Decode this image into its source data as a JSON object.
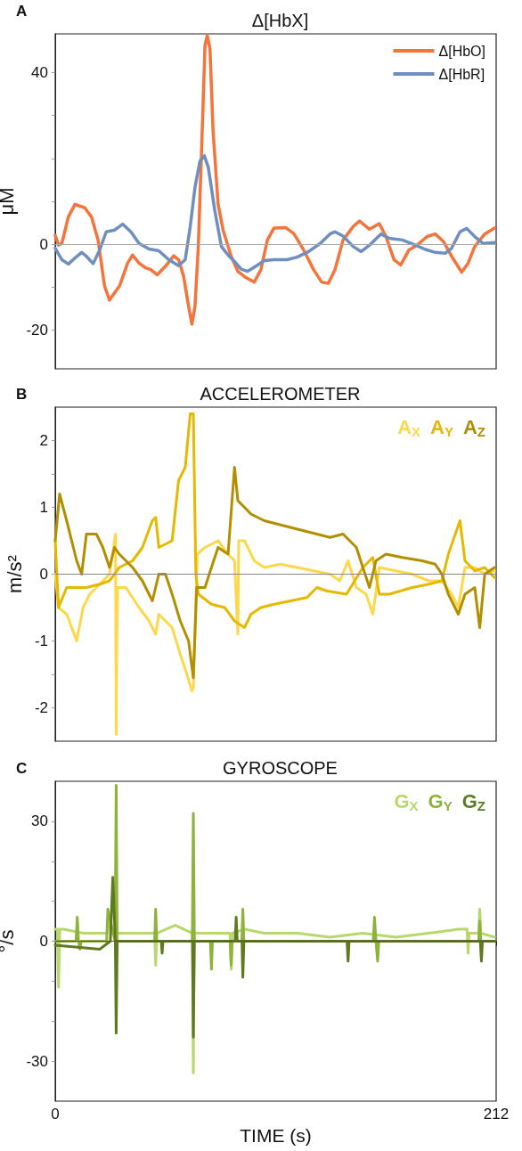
{
  "chart_data": [
    {
      "type": "line",
      "title": "Δ[HbX]",
      "ylabel": "μM",
      "annotations": [
        "A"
      ],
      "xlim": [
        0,
        212
      ],
      "ylim": [
        -29,
        49
      ],
      "yticks": [
        -20,
        {
          "value": -10,
          "label": null
        },
        0,
        {
          "value": 10,
          "label": null
        },
        {
          "value": 20,
          "label": null
        },
        {
          "value": 30,
          "label": null
        },
        40
      ],
      "tick_labels": "y",
      "grid": false,
      "legend": "top right",
      "marker": "none",
      "line_style": "solid",
      "ref_lines": [
        {
          "axis": "y",
          "value": 0,
          "color": "#aaaaaa"
        }
      ],
      "series": [
        {
          "name": "Δ[HbO]",
          "color": "#f4743b",
          "x": [
            0,
            1.6,
            3.2,
            6.3,
            9.5,
            14.2,
            17.4,
            20.6,
            23.7,
            26.1,
            28.5,
            30.9,
            34.8,
            37.2,
            40.3,
            43.5,
            45.9,
            49.0,
            53.0,
            57.0,
            59.3,
            61.7,
            64.1,
            65.7,
            67.2,
            68.8,
            70.4,
            72.0,
            73.1,
            74.4,
            75.9,
            78.3,
            80.7,
            84.6,
            87.8,
            91.8,
            95.7,
            98.9,
            102.0,
            105.2,
            110.7,
            114.7,
            119.4,
            124.2,
            128.1,
            131.3,
            134.5,
            138.4,
            143.2,
            146.3,
            151.1,
            155.8,
            159.0,
            162.9,
            166.1,
            170.1,
            174.0,
            178.8,
            182.7,
            186.7,
            190.6,
            195.4,
            198.5,
            201.7,
            206.5,
            211.2
          ],
          "values": [
            2.1,
            -0.2,
            0.2,
            6.4,
            9.3,
            8.5,
            6.4,
            1.0,
            -9.7,
            -13,
            -11.3,
            -9.7,
            -4.4,
            -2.5,
            -4.4,
            -5.5,
            -5.9,
            -7.1,
            -5.1,
            -2.7,
            -3.6,
            -7.4,
            -14.4,
            -18.6,
            -14.4,
            -0.5,
            22.5,
            46.3,
            48.6,
            45.5,
            26.3,
            9.4,
            3.3,
            -2.8,
            -6.3,
            -7.8,
            -8.8,
            -5.9,
            1.0,
            3.8,
            3.9,
            2.5,
            -1.3,
            -5.9,
            -8.8,
            -9.1,
            -5.9,
            1.0,
            4.1,
            5.4,
            3.5,
            4.8,
            1.8,
            -3.6,
            -4.8,
            -1.3,
            -0.2,
            1.8,
            2.4,
            0.6,
            -2.8,
            -6.5,
            -4.4,
            -0.5,
            2.4,
            3.8
          ]
        },
        {
          "name": "Δ[HbR]",
          "color": "#6f8fbf",
          "x": [
            0,
            3.2,
            6.3,
            9.5,
            12.7,
            15.0,
            18.2,
            21.4,
            24.5,
            28.5,
            32.4,
            36.4,
            40.3,
            45.1,
            49.8,
            54.6,
            59.3,
            62.5,
            64.9,
            67.2,
            69.6,
            71.7,
            73.6,
            76.7,
            79.9,
            83.1,
            86.2,
            89.4,
            92.5,
            96.5,
            100.5,
            105.2,
            111.5,
            116.3,
            121.8,
            127.4,
            132.1,
            134.5,
            138.4,
            143.2,
            147.1,
            151.1,
            156.6,
            160.6,
            166.9,
            173.2,
            178.0,
            182.7,
            187.5,
            190.6,
            194.6,
            197.8,
            201.7,
            205.7,
            211.2
          ],
          "values": [
            -0.9,
            -3.6,
            -4.6,
            -3.2,
            -1.9,
            -2.8,
            -4.5,
            -1.3,
            2.9,
            3.3,
            4.7,
            2.9,
            0.2,
            -1.1,
            -1.5,
            -3.6,
            -5.0,
            -3.6,
            4.1,
            13.3,
            19.4,
            20.6,
            17.9,
            7.9,
            -0.5,
            -2.5,
            -4.0,
            -5.8,
            -6.3,
            -5.1,
            -3.8,
            -3.6,
            -3.6,
            -3.0,
            -1.7,
            0.2,
            2.4,
            2.9,
            1.9,
            -0.5,
            -1.7,
            -0.2,
            2.4,
            1.4,
            1.0,
            -0.2,
            -1.2,
            -1.9,
            -2.1,
            -0.9,
            2.9,
            3.7,
            1.8,
            0.2,
            0.4
          ]
        }
      ]
    },
    {
      "type": "line",
      "title": "ACCELEROMETER",
      "ylabel": "m/s²",
      "annotations": [
        "B"
      ],
      "xlim": [
        0,
        212
      ],
      "ylim": [
        -2.5,
        2.5
      ],
      "yticks": [
        -2,
        {
          "value": -1.5,
          "label": null
        },
        -1,
        0,
        1,
        {
          "value": 1.5,
          "label": null
        },
        2
      ],
      "tick_labels": "y",
      "grid": false,
      "legend": "top right",
      "marker": "none",
      "line_style": "solid",
      "ref_lines": [
        {
          "axis": "y",
          "value": 0,
          "color": "#888888"
        }
      ],
      "series": [
        {
          "name": "A$_{X}$",
          "color": "#fdd84a",
          "x": [
            0,
            1.6,
            5.5,
            10.3,
            13.4,
            16.6,
            21.4,
            26.1,
            29.0,
            29.3,
            29.6,
            30.0,
            34.0,
            40.3,
            45.1,
            48.3,
            49.8,
            56.2,
            60.1,
            63.3,
            65.7,
            66.4,
            68.3,
            72.0,
            78.3,
            83.1,
            86.2,
            87.8,
            88.2,
            91.0,
            95.7,
            100.5,
            108.4,
            116.3,
            124.2,
            132.1,
            136.8,
            140.8,
            144.8,
            149.5,
            152.7,
            155.8,
            163.7,
            171.6,
            179.6,
            185.9,
            190.6,
            193.8,
            197.0,
            201.7,
            206.5,
            211.2
          ],
          "values": [
            0,
            -0.5,
            -0.6,
            -1.0,
            -0.5,
            -0.3,
            -0.15,
            0,
            0.6,
            -2.4,
            -1.0,
            -0.2,
            -0.2,
            -0.5,
            -0.7,
            -0.9,
            -0.6,
            -0.8,
            -1.2,
            -1.5,
            -1.75,
            -1.7,
            0.3,
            0.4,
            0.5,
            0.3,
            0.2,
            -0.9,
            0.5,
            0.5,
            0.2,
            0.1,
            0.15,
            0.1,
            0.05,
            0,
            -0.1,
            0.2,
            -0.2,
            -0.3,
            -0.6,
            0.1,
            0.05,
            0,
            -0.1,
            -0.1,
            -0.3,
            -0.5,
            0.1,
            0.1,
            0,
            0.05
          ]
        },
        {
          "name": "A$_{Y}$",
          "color": "#e6b800",
          "x": [
            0,
            1.6,
            5.5,
            15.0,
            21.4,
            26.1,
            30.8,
            37.2,
            41.9,
            46.7,
            48.3,
            49.8,
            53.0,
            56.2,
            59.3,
            62.5,
            64.9,
            66.4,
            67.6,
            68.8,
            75.1,
            81.5,
            86.2,
            91.0,
            94.1,
            98.9,
            105.2,
            113.1,
            121.0,
            125.8,
            130.5,
            140.0,
            147.9,
            152.7,
            155.8,
            160.6,
            171.6,
            179.6,
            185.9,
            189.0,
            194.6,
            197.0,
            201.7,
            206.5,
            211.2
          ],
          "values": [
            0.5,
            -0.5,
            -0.2,
            -0.2,
            -0.15,
            -0.1,
            0.1,
            0.2,
            0.4,
            0.8,
            0.85,
            0.4,
            0.45,
            0.5,
            1.4,
            1.6,
            2.4,
            2.4,
            0,
            -0.3,
            -0.45,
            -0.5,
            -0.7,
            -0.8,
            -0.6,
            -0.5,
            -0.45,
            -0.4,
            -0.35,
            -0.2,
            -0.25,
            -0.3,
            0.1,
            0.25,
            -0.3,
            -0.3,
            -0.2,
            -0.15,
            -0.1,
            0.3,
            0.8,
            0.2,
            0.05,
            0.1,
            -0.05
          ]
        },
        {
          "name": "A$_{Z}$",
          "color": "#b38f00",
          "x": [
            0,
            2.1,
            5.5,
            10.3,
            12.7,
            15.0,
            19.8,
            22.9,
            26.1,
            28.5,
            30.8,
            34.0,
            37.2,
            41.9,
            46.7,
            49.8,
            53.0,
            56.2,
            60.1,
            64.1,
            66.4,
            68.0,
            72.0,
            75.1,
            78.3,
            83.1,
            86.2,
            87.8,
            91.0,
            94.1,
            100.5,
            106.8,
            113.1,
            119.4,
            125.8,
            132.1,
            138.4,
            144.8,
            147.9,
            151.1,
            154.2,
            159.0,
            166.9,
            176.4,
            182.7,
            185.9,
            189.0,
            193.8,
            197.0,
            201.7,
            204.1,
            206.5,
            211.2
          ],
          "values": [
            0.5,
            1.2,
            0.8,
            0.2,
            0.0,
            0.6,
            0.6,
            0.4,
            0.1,
            0.4,
            0.3,
            0.2,
            0.1,
            -0.1,
            -0.4,
            0,
            0,
            -0.3,
            -0.7,
            -1.0,
            -1.55,
            -0.2,
            -0.2,
            0.1,
            0.4,
            0.3,
            1.6,
            1.1,
            1.0,
            0.9,
            0.8,
            0.75,
            0.7,
            0.65,
            0.6,
            0.55,
            0.6,
            0.4,
            0.1,
            -0.2,
            0.2,
            0.3,
            0.25,
            0.2,
            0.15,
            0,
            -0.3,
            -0.6,
            -0.3,
            -0.2,
            -0.8,
            0.0,
            0.1
          ]
        }
      ]
    },
    {
      "type": "line",
      "title": "GYROSCOPE",
      "ylabel": "°/s",
      "xlabel": "TIME (s)",
      "annotations": [
        "C"
      ],
      "xlim": [
        0,
        212
      ],
      "ylim": [
        -40,
        40
      ],
      "xticks": [
        0,
        212
      ],
      "yticks": [
        -30,
        {
          "value": -20,
          "label": null
        },
        {
          "value": -10,
          "label": null
        },
        0,
        {
          "value": 10,
          "label": null
        },
        {
          "value": 20,
          "label": null
        },
        30
      ],
      "grid": false,
      "legend": "top right",
      "marker": "none",
      "line_style": "solid",
      "ref_lines": [
        {
          "axis": "y",
          "value": 0,
          "color": "#555555"
        }
      ],
      "series": [
        {
          "name": "G$_{X}$",
          "color": "#b8d86b",
          "x": [
            0,
            1.0,
            1.6,
            2.2,
            4.0,
            13.4,
            25.0,
            26.1,
            27.2,
            29.0,
            29.3,
            29.6,
            40.3,
            47.8,
            48.3,
            48.8,
            57.7,
            66.0,
            66.4,
            66.8,
            76.7,
            84.0,
            84.6,
            85.2,
            91.0,
            100.5,
            116.3,
            132.1,
            147.9,
            163.7,
            179.6,
            193.8,
            198.0,
            198.5,
            199.0,
            203.6,
            204.1,
            204.6,
            211.2
          ],
          "values": [
            3,
            3,
            -11.5,
            3,
            3,
            2,
            2,
            5,
            2,
            2,
            null,
            2,
            2,
            2,
            -6,
            2,
            4,
            2,
            -33,
            2,
            2,
            2,
            -7,
            2,
            3,
            2,
            2,
            1,
            2,
            1,
            2,
            3,
            3,
            -3,
            2,
            2,
            8,
            2,
            1
          ]
        },
        {
          "name": "G$_{Y}$",
          "color": "#8db33a",
          "x": [
            0,
            10.0,
            10.6,
            11.2,
            11.9,
            12.5,
            24.7,
            25.3,
            28.8,
            29.3,
            29.8,
            30.5,
            47.8,
            48.3,
            48.8,
            65.9,
            66.4,
            66.9,
            74.6,
            75.1,
            75.6,
            84.1,
            84.6,
            85.1,
            89.7,
            90.2,
            90.7,
            152.9,
            153.5,
            154.2,
            155.0,
            155.6,
            203.6,
            204.1,
            204.6,
            211.2
          ],
          "values": [
            0,
            0,
            6,
            0,
            -2,
            0,
            0,
            8,
            0,
            39,
            0,
            0,
            0,
            8,
            0,
            0,
            32,
            0,
            0,
            -7,
            0,
            0,
            -6,
            0,
            0,
            8,
            0,
            0,
            6,
            0,
            -5,
            0,
            0,
            5,
            0,
            0
          ]
        },
        {
          "name": "G$_{Z}$",
          "color": "#5f7a1e",
          "x": [
            0,
            21.4,
            26.5,
            27.7,
            28.9,
            29.3,
            29.8,
            51.0,
            51.4,
            51.8,
            66.0,
            66.4,
            66.9,
            86.5,
            87.0,
            87.5,
            89.8,
            90.2,
            90.7,
            140.3,
            140.8,
            141.3,
            204.4,
            204.9,
            205.4,
            211.2
          ],
          "values": [
            -1,
            -2,
            0,
            16,
            0,
            -23,
            0,
            0,
            -3,
            0,
            0,
            -24,
            0,
            0,
            6,
            0,
            0,
            -9,
            0,
            0,
            -5,
            0,
            0,
            -5,
            0,
            0
          ]
        }
      ]
    }
  ]
}
